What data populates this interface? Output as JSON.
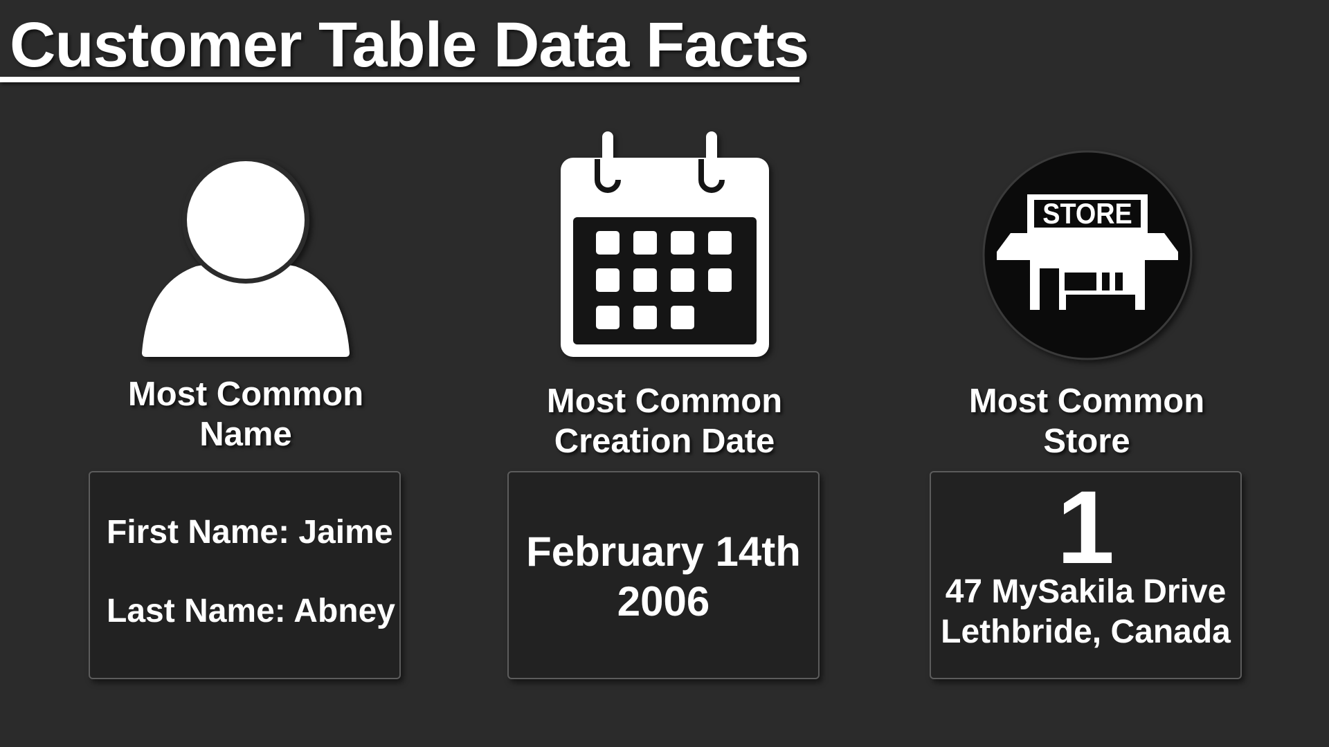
{
  "title": "Customer Table Data Facts",
  "colors": {
    "background": "#2b2b2b",
    "card_background": "#222222",
    "card_border": "#5c5c5c",
    "text": "#ffffff"
  },
  "sections": [
    {
      "icon": "person-icon",
      "heading_line1": "Most Common",
      "heading_line2": "Name",
      "first_name": "First Name: Jaime",
      "last_name": "Last Name: Abney"
    },
    {
      "icon": "calendar-icon",
      "heading_line1": "Most Common",
      "heading_line2": "Creation Date",
      "date_line1": "February 14th",
      "date_line2": "2006"
    },
    {
      "icon": "store-icon",
      "icon_label": "STORE",
      "heading_line1": "Most Common",
      "heading_line2": "Store",
      "store_number": "1",
      "address_line1": "47 MySakila Drive",
      "address_line2": "Lethbride, Canada"
    }
  ]
}
